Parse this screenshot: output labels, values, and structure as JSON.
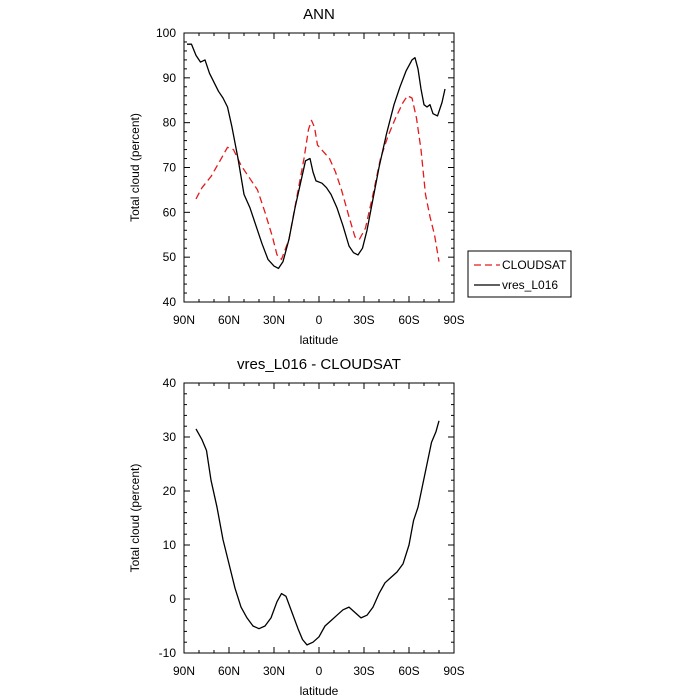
{
  "chart_data": [
    {
      "type": "line",
      "title": "ANN",
      "xlabel": "latitude",
      "ylabel": "Total cloud (percent)",
      "xlim": [
        -90,
        90
      ],
      "ylim": [
        40,
        100
      ],
      "x_ticks": [
        -90,
        -60,
        -30,
        0,
        30,
        60,
        90
      ],
      "x_tick_labels": [
        "90N",
        "60N",
        "30N",
        "0",
        "30S",
        "60S",
        "90S"
      ],
      "y_ticks": [
        40,
        50,
        60,
        70,
        80,
        90,
        100
      ],
      "y_tick_labels": [
        "40",
        "50",
        "60",
        "70",
        "80",
        "90",
        "100"
      ],
      "legend_position": "right-outside",
      "series": [
        {
          "name": "CLOUDSAT",
          "color": "#e41a1c",
          "dash": "dashed",
          "points": [
            [
              -82,
              63
            ],
            [
              -78,
              65.5
            ],
            [
              -72,
              68
            ],
            [
              -66,
              71.5
            ],
            [
              -61,
              74.5
            ],
            [
              -57,
              74
            ],
            [
              -52,
              70.5
            ],
            [
              -46,
              67.5
            ],
            [
              -41,
              65
            ],
            [
              -36,
              60
            ],
            [
              -31,
              54.5
            ],
            [
              -28,
              50.5
            ],
            [
              -25,
              49.5
            ],
            [
              -20,
              54
            ],
            [
              -15,
              63
            ],
            [
              -10,
              72
            ],
            [
              -7,
              78.5
            ],
            [
              -5,
              80.5
            ],
            [
              -3,
              79
            ],
            [
              -1,
              75
            ],
            [
              3,
              73.5
            ],
            [
              7,
              72
            ],
            [
              11,
              69
            ],
            [
              15,
              65
            ],
            [
              20,
              59
            ],
            [
              24,
              54.5
            ],
            [
              27,
              54
            ],
            [
              31,
              56.5
            ],
            [
              36,
              64
            ],
            [
              41,
              72
            ],
            [
              46,
              77
            ],
            [
              51,
              81
            ],
            [
              56,
              84.5
            ],
            [
              59,
              86
            ],
            [
              62,
              85.5
            ],
            [
              65,
              81
            ],
            [
              68,
              74
            ],
            [
              71,
              64
            ],
            [
              74,
              59
            ],
            [
              77,
              55
            ],
            [
              80,
              49
            ]
          ]
        },
        {
          "name": "vres_L016",
          "color": "#000000",
          "dash": "solid",
          "points": [
            [
              -88,
              97.5
            ],
            [
              -85,
              97.5
            ],
            [
              -82,
              95
            ],
            [
              -79,
              93.5
            ],
            [
              -76,
              94
            ],
            [
              -73,
              91
            ],
            [
              -70,
              89
            ],
            [
              -67,
              87
            ],
            [
              -64,
              85.5
            ],
            [
              -61,
              83.5
            ],
            [
              -58,
              79
            ],
            [
              -54,
              72
            ],
            [
              -50,
              64
            ],
            [
              -46,
              61
            ],
            [
              -42,
              57
            ],
            [
              -38,
              53
            ],
            [
              -34,
              49.5
            ],
            [
              -30,
              48
            ],
            [
              -27,
              47.5
            ],
            [
              -24,
              49
            ],
            [
              -20,
              54
            ],
            [
              -16,
              61
            ],
            [
              -12,
              67
            ],
            [
              -9,
              71.5
            ],
            [
              -6,
              72
            ],
            [
              -4,
              69
            ],
            [
              -2,
              67
            ],
            [
              2,
              66.5
            ],
            [
              5,
              65.5
            ],
            [
              8,
              64
            ],
            [
              12,
              61
            ],
            [
              16,
              57
            ],
            [
              20,
              52.5
            ],
            [
              23,
              51
            ],
            [
              26,
              50.5
            ],
            [
              29,
              52
            ],
            [
              32,
              56
            ],
            [
              36,
              63
            ],
            [
              40,
              70
            ],
            [
              45,
              77.5
            ],
            [
              50,
              84
            ],
            [
              54,
              88
            ],
            [
              58,
              91.5
            ],
            [
              62,
              94
            ],
            [
              64,
              94.5
            ],
            [
              66,
              92
            ],
            [
              68,
              87.5
            ],
            [
              70,
              84
            ],
            [
              72,
              83.5
            ],
            [
              74,
              84
            ],
            [
              76,
              82
            ],
            [
              79,
              81.5
            ],
            [
              82,
              84.5
            ],
            [
              84,
              87.5
            ]
          ]
        }
      ]
    },
    {
      "type": "line",
      "title": "vres_L016 - CLOUDSAT",
      "xlabel": "latitude",
      "ylabel": "Total cloud (percent)",
      "xlim": [
        -90,
        90
      ],
      "ylim": [
        -10,
        40
      ],
      "x_ticks": [
        -90,
        -60,
        -30,
        0,
        30,
        60,
        90
      ],
      "x_tick_labels": [
        "90N",
        "60N",
        "30N",
        "0",
        "30S",
        "60S",
        "90S"
      ],
      "y_ticks": [
        -10,
        0,
        10,
        20,
        30,
        40
      ],
      "y_tick_labels": [
        "-10",
        "0",
        "10",
        "20",
        "30",
        "40"
      ],
      "series": [
        {
          "color": "#000000",
          "dash": "solid",
          "points": [
            [
              -82,
              31.5
            ],
            [
              -78,
              29.5
            ],
            [
              -75,
              27.5
            ],
            [
              -72,
              22
            ],
            [
              -68,
              17
            ],
            [
              -64,
              11
            ],
            [
              -60,
              6.5
            ],
            [
              -56,
              2
            ],
            [
              -52,
              -1.5
            ],
            [
              -48,
              -3.5
            ],
            [
              -44,
              -5
            ],
            [
              -40,
              -5.5
            ],
            [
              -36,
              -5
            ],
            [
              -32,
              -3.5
            ],
            [
              -28,
              -0.5
            ],
            [
              -25,
              1
            ],
            [
              -22,
              0.5
            ],
            [
              -18,
              -2.5
            ],
            [
              -14,
              -5.5
            ],
            [
              -11,
              -7.5
            ],
            [
              -8,
              -8.5
            ],
            [
              -4,
              -8
            ],
            [
              0,
              -7
            ],
            [
              4,
              -5
            ],
            [
              8,
              -4
            ],
            [
              12,
              -3
            ],
            [
              16,
              -2
            ],
            [
              20,
              -1.5
            ],
            [
              24,
              -2.5
            ],
            [
              28,
              -3.5
            ],
            [
              32,
              -3
            ],
            [
              36,
              -1.5
            ],
            [
              40,
              1
            ],
            [
              44,
              3
            ],
            [
              48,
              4
            ],
            [
              52,
              5
            ],
            [
              56,
              6.5
            ],
            [
              60,
              10
            ],
            [
              63,
              14.5
            ],
            [
              66,
              17
            ],
            [
              69,
              21
            ],
            [
              72,
              25
            ],
            [
              75,
              29
            ],
            [
              78,
              31
            ],
            [
              80,
              33
            ]
          ]
        }
      ]
    }
  ]
}
